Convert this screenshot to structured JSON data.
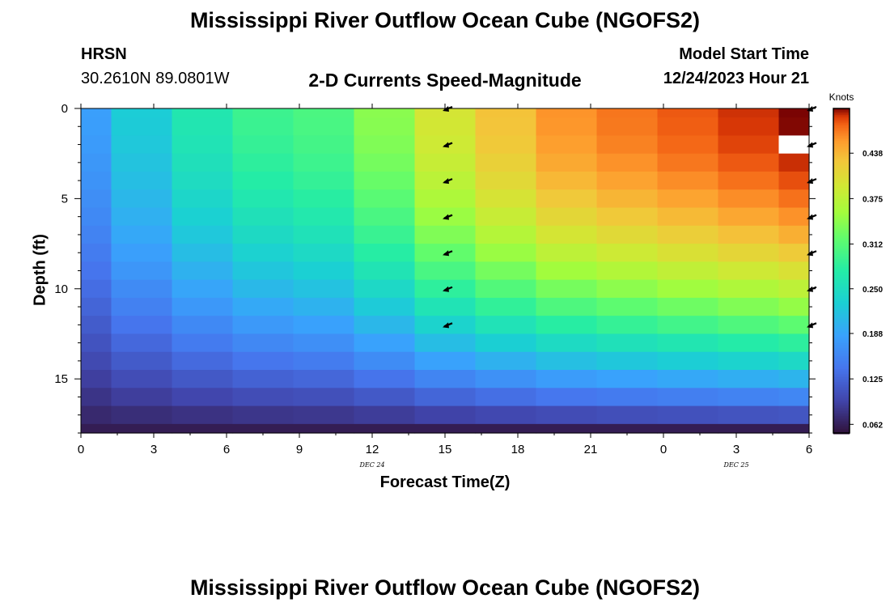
{
  "header": {
    "title_top": "Mississippi River Outflow Ocean Cube (NGOFS2)",
    "title_bottom": "Mississippi River Outflow Ocean Cube (NGOFS2)",
    "station_name": "HRSN",
    "station_coords": "30.2610N  89.0801W",
    "plot_title": "2-D Currents Speed-Magnitude",
    "model_start_label": "Model Start Time",
    "model_start_value": "12/24/2023 Hour 21"
  },
  "chart_data": {
    "type": "heatmap",
    "title": "2-D Currents Speed-Magnitude",
    "xlabel": "Forecast Time(Z)",
    "ylabel": "Depth (ft)",
    "colorbar_label": "Knots",
    "x_ticks": [
      "0",
      "3",
      "6",
      "9",
      "12",
      "15",
      "18",
      "21",
      "0",
      "3",
      "6"
    ],
    "date_labels": [
      {
        "text": "DEC 24",
        "at_hour": 12
      },
      {
        "text": "DEC 25",
        "at_hour": 27
      }
    ],
    "y_ticks": [
      "0",
      "5",
      "10",
      "15"
    ],
    "y_range": [
      0,
      18
    ],
    "y_inverted": true,
    "x_range_hours": [
      0,
      30
    ],
    "time_hours": [
      0,
      2.5,
      5,
      7.5,
      10,
      12.5,
      15,
      17.5,
      20,
      22.5,
      25,
      27.5,
      30
    ],
    "depth_ft": [
      0,
      1,
      2,
      3,
      4,
      5,
      6,
      7,
      8,
      9,
      10,
      11,
      12,
      13,
      14,
      15,
      16,
      17,
      18
    ],
    "surface_speed_knots": [
      0.182,
      0.228,
      0.266,
      0.293,
      0.304,
      0.342,
      0.395,
      0.43,
      0.458,
      0.47,
      0.48,
      0.49,
      0.5
    ],
    "bottom_speed_knots": 0.06,
    "max_speed_knots": 0.5,
    "colorbar_ticks": [
      "0.062",
      "0.125",
      "0.188",
      "0.250",
      "0.312",
      "0.375",
      "0.438"
    ],
    "colorbar_range": [
      0.05,
      0.5
    ],
    "missing_cell": {
      "time_hour": 30,
      "depth_ft": 2
    },
    "arrow_times": [
      15,
      30
    ],
    "arrow_depths_ft": [
      0,
      2,
      4,
      6,
      8,
      10,
      12
    ],
    "arrow_direction": "southwest"
  }
}
